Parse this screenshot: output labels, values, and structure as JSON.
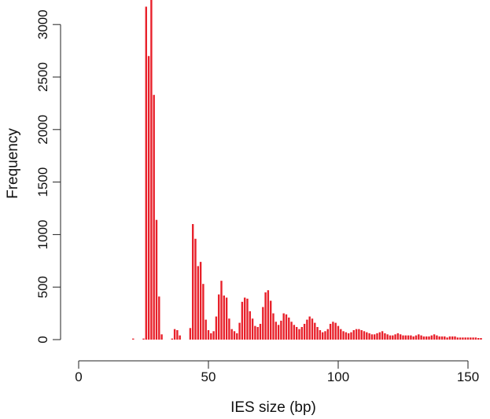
{
  "chart_data": {
    "type": "bar",
    "title": "",
    "xlabel": "IES size (bp)",
    "ylabel": "Frequency",
    "xlim": [
      0,
      155
    ],
    "ylim": [
      0,
      3200
    ],
    "x_ticks": [
      0,
      50,
      100,
      150
    ],
    "y_ticks": [
      0,
      500,
      1000,
      1500,
      2000,
      2500,
      3000
    ],
    "grid": false,
    "legend": "none",
    "bar_color": "#e8202a",
    "x": [
      21,
      22,
      23,
      24,
      25,
      26,
      27,
      28,
      29,
      30,
      31,
      32,
      33,
      34,
      35,
      36,
      37,
      38,
      39,
      40,
      41,
      42,
      43,
      44,
      45,
      46,
      47,
      48,
      49,
      50,
      51,
      52,
      53,
      54,
      55,
      56,
      57,
      58,
      59,
      60,
      61,
      62,
      63,
      64,
      65,
      66,
      67,
      68,
      69,
      70,
      71,
      72,
      73,
      74,
      75,
      76,
      77,
      78,
      79,
      80,
      81,
      82,
      83,
      84,
      85,
      86,
      87,
      88,
      89,
      90,
      91,
      92,
      93,
      94,
      95,
      96,
      97,
      98,
      99,
      100,
      101,
      102,
      103,
      104,
      105,
      106,
      107,
      108,
      109,
      110,
      111,
      112,
      113,
      114,
      115,
      116,
      117,
      118,
      119,
      120,
      121,
      122,
      123,
      124,
      125,
      126,
      127,
      128,
      129,
      130,
      131,
      132,
      133,
      134,
      135,
      136,
      137,
      138,
      139,
      140,
      141,
      142,
      143,
      144,
      145,
      146,
      147,
      148,
      149,
      150,
      151,
      152,
      153,
      154,
      155
    ],
    "values": [
      10,
      0,
      0,
      0,
      10,
      3170,
      2700,
      3290,
      2330,
      1140,
      410,
      50,
      0,
      0,
      0,
      10,
      100,
      90,
      40,
      0,
      0,
      0,
      110,
      1100,
      960,
      700,
      740,
      530,
      190,
      90,
      60,
      80,
      220,
      430,
      560,
      420,
      400,
      200,
      100,
      80,
      60,
      160,
      360,
      400,
      390,
      270,
      200,
      130,
      120,
      150,
      310,
      450,
      470,
      370,
      250,
      170,
      140,
      180,
      250,
      240,
      210,
      170,
      140,
      120,
      100,
      120,
      150,
      190,
      220,
      200,
      160,
      120,
      90,
      70,
      80,
      100,
      150,
      170,
      160,
      130,
      100,
      80,
      70,
      60,
      70,
      90,
      100,
      100,
      90,
      80,
      70,
      60,
      50,
      50,
      60,
      70,
      80,
      60,
      50,
      40,
      40,
      50,
      60,
      50,
      40,
      40,
      40,
      40,
      30,
      40,
      50,
      40,
      30,
      30,
      30,
      40,
      50,
      40,
      30,
      30,
      30,
      20,
      30,
      30,
      30,
      20,
      20,
      20,
      20,
      20,
      20,
      20,
      20,
      15,
      15
    ]
  }
}
